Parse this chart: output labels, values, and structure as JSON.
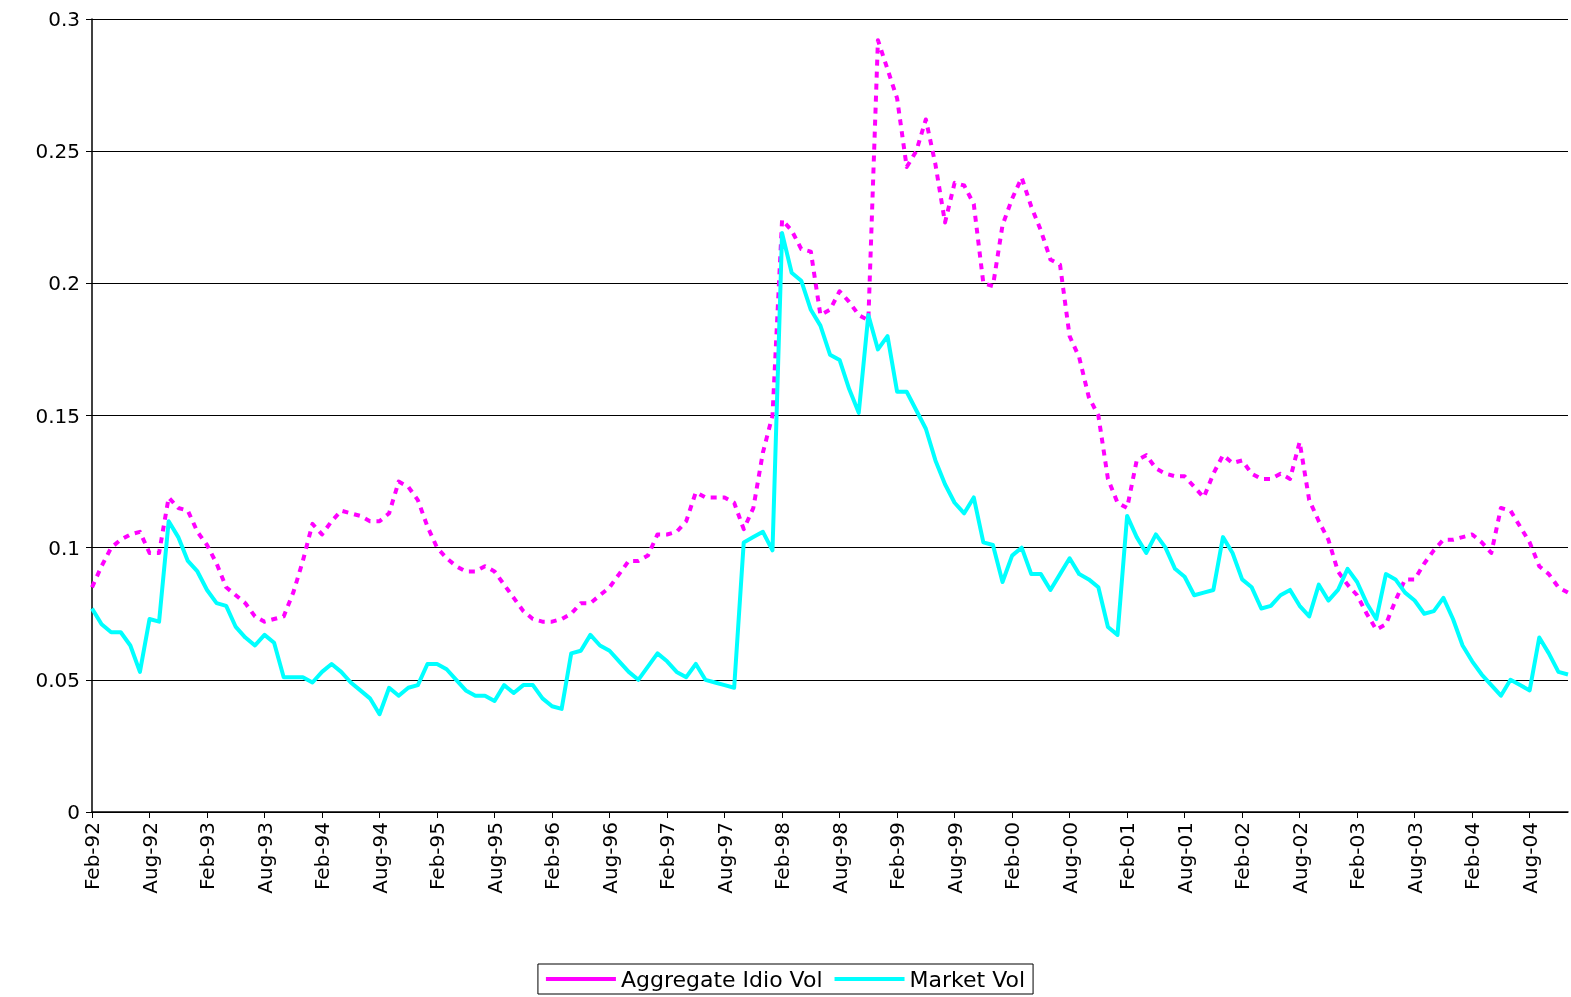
{
  "chart_data": {
    "type": "line",
    "categories": [
      "Feb-92",
      null,
      null,
      null,
      null,
      null,
      "Aug-92",
      null,
      null,
      null,
      null,
      null,
      "Feb-93",
      null,
      null,
      null,
      null,
      null,
      "Aug-93",
      null,
      null,
      null,
      null,
      null,
      "Feb-94",
      null,
      null,
      null,
      null,
      null,
      "Aug-94",
      null,
      null,
      null,
      null,
      null,
      "Feb-95",
      null,
      null,
      null,
      null,
      null,
      "Aug-95",
      null,
      null,
      null,
      null,
      null,
      "Feb-96",
      null,
      null,
      null,
      null,
      null,
      "Aug-96",
      null,
      null,
      null,
      null,
      null,
      "Feb-97",
      null,
      null,
      null,
      null,
      null,
      "Aug-97",
      null,
      null,
      null,
      null,
      null,
      "Feb-98",
      null,
      null,
      null,
      null,
      null,
      "Aug-98",
      null,
      null,
      null,
      null,
      null,
      "Feb-99",
      null,
      null,
      null,
      null,
      null,
      "Aug-99",
      null,
      null,
      null,
      null,
      null,
      "Feb-00",
      null,
      null,
      null,
      null,
      null,
      "Aug-00",
      null,
      null,
      null,
      null,
      null,
      "Feb-01",
      null,
      null,
      null,
      null,
      null,
      "Aug-01",
      null,
      null,
      null,
      null,
      null,
      "Feb-02",
      null,
      null,
      null,
      null,
      null,
      "Aug-02",
      null,
      null,
      null,
      null,
      null,
      "Feb-03",
      null,
      null,
      null,
      null,
      null,
      "Aug-03",
      null,
      null,
      null,
      null,
      null,
      "Feb-04",
      null,
      null,
      null,
      null,
      null,
      "Aug-04",
      null,
      null,
      null,
      null
    ],
    "series": [
      {
        "name": "Aggregate Idio Vol",
        "color": "#ff00ff",
        "line_style": "dashed",
        "values": [
          0.085,
          0.093,
          0.1,
          0.103,
          0.105,
          0.106,
          0.098,
          0.098,
          0.119,
          0.115,
          0.114,
          0.106,
          0.101,
          0.094,
          0.085,
          0.082,
          0.079,
          0.074,
          0.072,
          0.073,
          0.074,
          0.083,
          0.095,
          0.109,
          0.105,
          0.11,
          0.114,
          0.113,
          0.112,
          0.11,
          0.11,
          0.113,
          0.125,
          0.123,
          0.118,
          0.108,
          0.1,
          0.096,
          0.093,
          0.091,
          0.091,
          0.093,
          0.091,
          0.086,
          0.081,
          0.076,
          0.073,
          0.072,
          0.072,
          0.073,
          0.075,
          0.079,
          0.079,
          0.082,
          0.085,
          0.09,
          0.095,
          0.095,
          0.097,
          0.105,
          0.105,
          0.106,
          0.11,
          0.121,
          0.119,
          0.119,
          0.119,
          0.117,
          0.107,
          0.115,
          0.136,
          0.15,
          0.224,
          0.22,
          0.213,
          0.212,
          0.188,
          0.19,
          0.197,
          0.193,
          0.188,
          0.186,
          0.292,
          0.281,
          0.27,
          0.244,
          0.25,
          0.262,
          0.245,
          0.223,
          0.238,
          0.237,
          0.23,
          0.2,
          0.199,
          0.222,
          0.232,
          0.24,
          0.229,
          0.22,
          0.209,
          0.207,
          0.18,
          0.172,
          0.157,
          0.15,
          0.126,
          0.117,
          0.115,
          0.133,
          0.135,
          0.13,
          0.128,
          0.127,
          0.127,
          0.123,
          0.119,
          0.128,
          0.135,
          0.132,
          0.133,
          0.128,
          0.126,
          0.126,
          0.128,
          0.126,
          0.14,
          0.118,
          0.11,
          0.103,
          0.091,
          0.086,
          0.082,
          0.075,
          0.069,
          0.071,
          0.08,
          0.088,
          0.088,
          0.094,
          0.099,
          0.103,
          0.103,
          0.104,
          0.105,
          0.102,
          0.098,
          0.115,
          0.114,
          0.108,
          0.102,
          0.093,
          0.09,
          0.085,
          0.083
        ]
      },
      {
        "name": "Market Vol",
        "color": "#00ffff",
        "line_style": "solid",
        "values": [
          0.077,
          0.071,
          0.068,
          0.068,
          0.063,
          0.053,
          0.073,
          0.072,
          0.11,
          0.104,
          0.095,
          0.091,
          0.084,
          0.079,
          0.078,
          0.07,
          0.066,
          0.063,
          0.067,
          0.064,
          0.051,
          0.051,
          0.051,
          0.049,
          0.053,
          0.056,
          0.053,
          0.049,
          0.046,
          0.043,
          0.037,
          0.047,
          0.044,
          0.047,
          0.048,
          0.056,
          0.056,
          0.054,
          0.05,
          0.046,
          0.044,
          0.044,
          0.042,
          0.048,
          0.045,
          0.048,
          0.048,
          0.043,
          0.04,
          0.039,
          0.06,
          0.061,
          0.067,
          0.063,
          0.061,
          0.057,
          0.053,
          0.05,
          0.055,
          0.06,
          0.057,
          0.053,
          0.051,
          0.056,
          0.05,
          0.049,
          0.048,
          0.047,
          0.102,
          0.104,
          0.106,
          0.099,
          0.219,
          0.204,
          0.201,
          0.19,
          0.184,
          0.173,
          0.171,
          0.16,
          0.151,
          0.188,
          0.175,
          0.18,
          0.159,
          0.159,
          0.152,
          0.145,
          0.133,
          0.124,
          0.117,
          0.113,
          0.119,
          0.102,
          0.101,
          0.087,
          0.097,
          0.1,
          0.09,
          0.09,
          0.084,
          0.09,
          0.096,
          0.09,
          0.088,
          0.085,
          0.07,
          0.067,
          0.112,
          0.104,
          0.098,
          0.105,
          0.1,
          0.092,
          0.089,
          0.082,
          0.083,
          0.084,
          0.104,
          0.098,
          0.088,
          0.085,
          0.077,
          0.078,
          0.082,
          0.084,
          0.078,
          0.074,
          0.086,
          0.08,
          0.084,
          0.092,
          0.087,
          0.079,
          0.073,
          0.09,
          0.088,
          0.083,
          0.08,
          0.075,
          0.076,
          0.081,
          0.073,
          0.063,
          0.057,
          0.052,
          0.048,
          0.044,
          0.05,
          0.048,
          0.046,
          0.066,
          0.06,
          0.053,
          0.052
        ]
      }
    ],
    "ylim": [
      0,
      0.3
    ],
    "yticks": [
      0,
      0.05,
      0.1,
      0.15,
      0.2,
      0.25,
      0.3
    ],
    "grid": "y",
    "legend": "bottom",
    "marker": "none"
  }
}
